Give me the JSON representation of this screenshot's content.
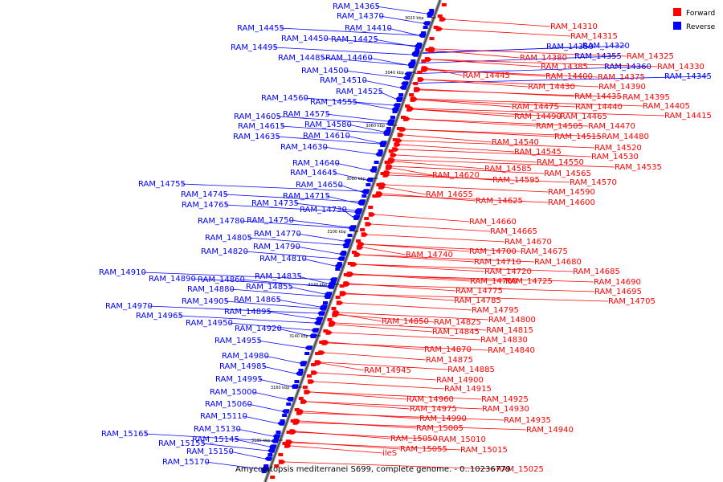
{
  "caption": "Amycolatopsis mediterranei S699, complete genome. - 0..10236779",
  "legend": [
    {
      "label": "Forward",
      "color": "#ff0000"
    },
    {
      "label": "Reverse",
      "color": "#0000ff"
    }
  ],
  "ticks": [
    "3020 kbp",
    "3040 kbp",
    "3060 kbp",
    "3080 kbp",
    "3100 kbp",
    "3120 kbp",
    "3140 kbp",
    "3160 kbp",
    "3180 kbp"
  ],
  "reverse_genes": [
    "RAM_14365",
    "RAM_14370",
    "RAM_14455",
    "RAM_14410",
    "RAM_14450",
    "RAM_14425",
    "RAM_14495",
    "RAM_14485",
    "RAM_14460",
    "RAM_14500",
    "RAM_14510",
    "RAM_14525",
    "RAM_14560",
    "RAM_14555",
    "RAM_14605",
    "RAM_14575",
    "RAM_14615",
    "RAM_14580",
    "RAM_14635",
    "RAM_14610",
    "RAM_14630",
    "RAM_14640",
    "RAM_14645",
    "RAM_14650",
    "RAM_14755",
    "RAM_14715",
    "RAM_14745",
    "RAM_14735",
    "RAM_14765",
    "RAM_14730",
    "RAM_14780",
    "RAM_14750",
    "RAM_14770",
    "RAM_14805",
    "RAM_14790",
    "RAM_14820",
    "RAM_14810",
    "RAM_14910",
    "RAM_14835",
    "RAM_14890",
    "RAM_14860",
    "RAM_14880",
    "RAM_14855",
    "RAM_14905",
    "RAM_14865",
    "RAM_14970",
    "RAM_14895",
    "RAM_14965",
    "RAM_14950",
    "RAM_14920",
    "RAM_14955",
    "RAM_14980",
    "RAM_14985",
    "RAM_14995",
    "RAM_15000",
    "RAM_15060",
    "RAM_15110",
    "RAM_15130",
    "RAM_15165",
    "RAM_15145",
    "RAM_15155",
    "RAM_15150",
    "RAM_15170",
    "RAM_14320",
    "RAM_14350",
    "RAM_14355",
    "RAM_14360",
    "RAM_14345"
  ],
  "forward_genes": [
    "RAM_14310",
    "RAM_14315",
    "RAM_14325",
    "RAM_14380",
    "RAM_14330",
    "RAM_14385",
    "RAM_14375",
    "RAM_14445",
    "RAM_14400",
    "RAM_14390",
    "RAM_14430",
    "RAM_14395",
    "RAM_14435",
    "RAM_14405",
    "RAM_14475",
    "RAM_14440",
    "RAM_14415",
    "RAM_14490",
    "RAM_14465",
    "RAM_14505",
    "RAM_14470",
    "RAM_14515",
    "RAM_14480",
    "RAM_14540",
    "RAM_14520",
    "RAM_14545",
    "RAM_14530",
    "RAM_14550",
    "RAM_14535",
    "RAM_14585",
    "RAM_14565",
    "RAM_14620",
    "RAM_14595",
    "RAM_14570",
    "RAM_14590",
    "RAM_14655",
    "RAM_14625",
    "RAM_14600",
    "RAM_14660",
    "RAM_14665",
    "RAM_14670",
    "RAM_14740",
    "RAM_14700",
    "RAM_14675",
    "RAM_14710",
    "RAM_14680",
    "RAM_14720",
    "RAM_14685",
    "RAM_14760",
    "RAM_14725",
    "RAM_14690",
    "RAM_14775",
    "RAM_14695",
    "RAM_14785",
    "RAM_14705",
    "RAM_14795",
    "RAM_14850",
    "RAM_14825",
    "RAM_14800",
    "RAM_14845",
    "RAM_14815",
    "RAM_14830",
    "RAM_14870",
    "RAM_14840",
    "RAM_14875",
    "RAM_14945",
    "RAM_14885",
    "RAM_14900",
    "RAM_14915",
    "RAM_14960",
    "RAM_14925",
    "RAM_14975",
    "RAM_14930",
    "RAM_14990",
    "RAM_14935",
    "RAM_15005",
    "RAM_14940",
    "RAM_15050",
    "RAM_15010",
    "RAM_15055",
    "RAM_15015",
    "ileS",
    "RAM_15025"
  ]
}
